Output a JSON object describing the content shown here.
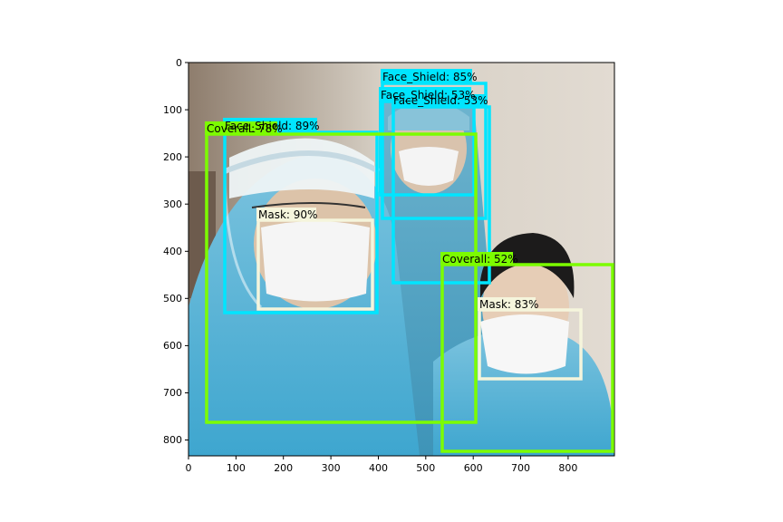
{
  "axes": {
    "x_ticks": [
      "0",
      "100",
      "200",
      "300",
      "400",
      "500",
      "600",
      "700",
      "800"
    ],
    "y_ticks": [
      "0",
      "100",
      "200",
      "300",
      "400",
      "500",
      "600",
      "700",
      "800"
    ]
  },
  "detections": [
    {
      "label": "Face_Shield: 85%",
      "color": "#00e5ff"
    },
    {
      "label": "Face_Shield: 53%",
      "color": "#00e5ff"
    },
    {
      "label": "Face_Shield: 53%",
      "color": "#00e5ff"
    },
    {
      "label": "Face_Shield: 89%",
      "color": "#00e5ff"
    },
    {
      "label": "Coverall: 78%",
      "color": "#7cfc00"
    },
    {
      "label": "Mask: 90%",
      "color": "#f5f5dc"
    },
    {
      "label": "Coverall: 52%",
      "color": "#7cfc00"
    },
    {
      "label": "Mask: 83%",
      "color": "#f5f5dc"
    }
  ]
}
